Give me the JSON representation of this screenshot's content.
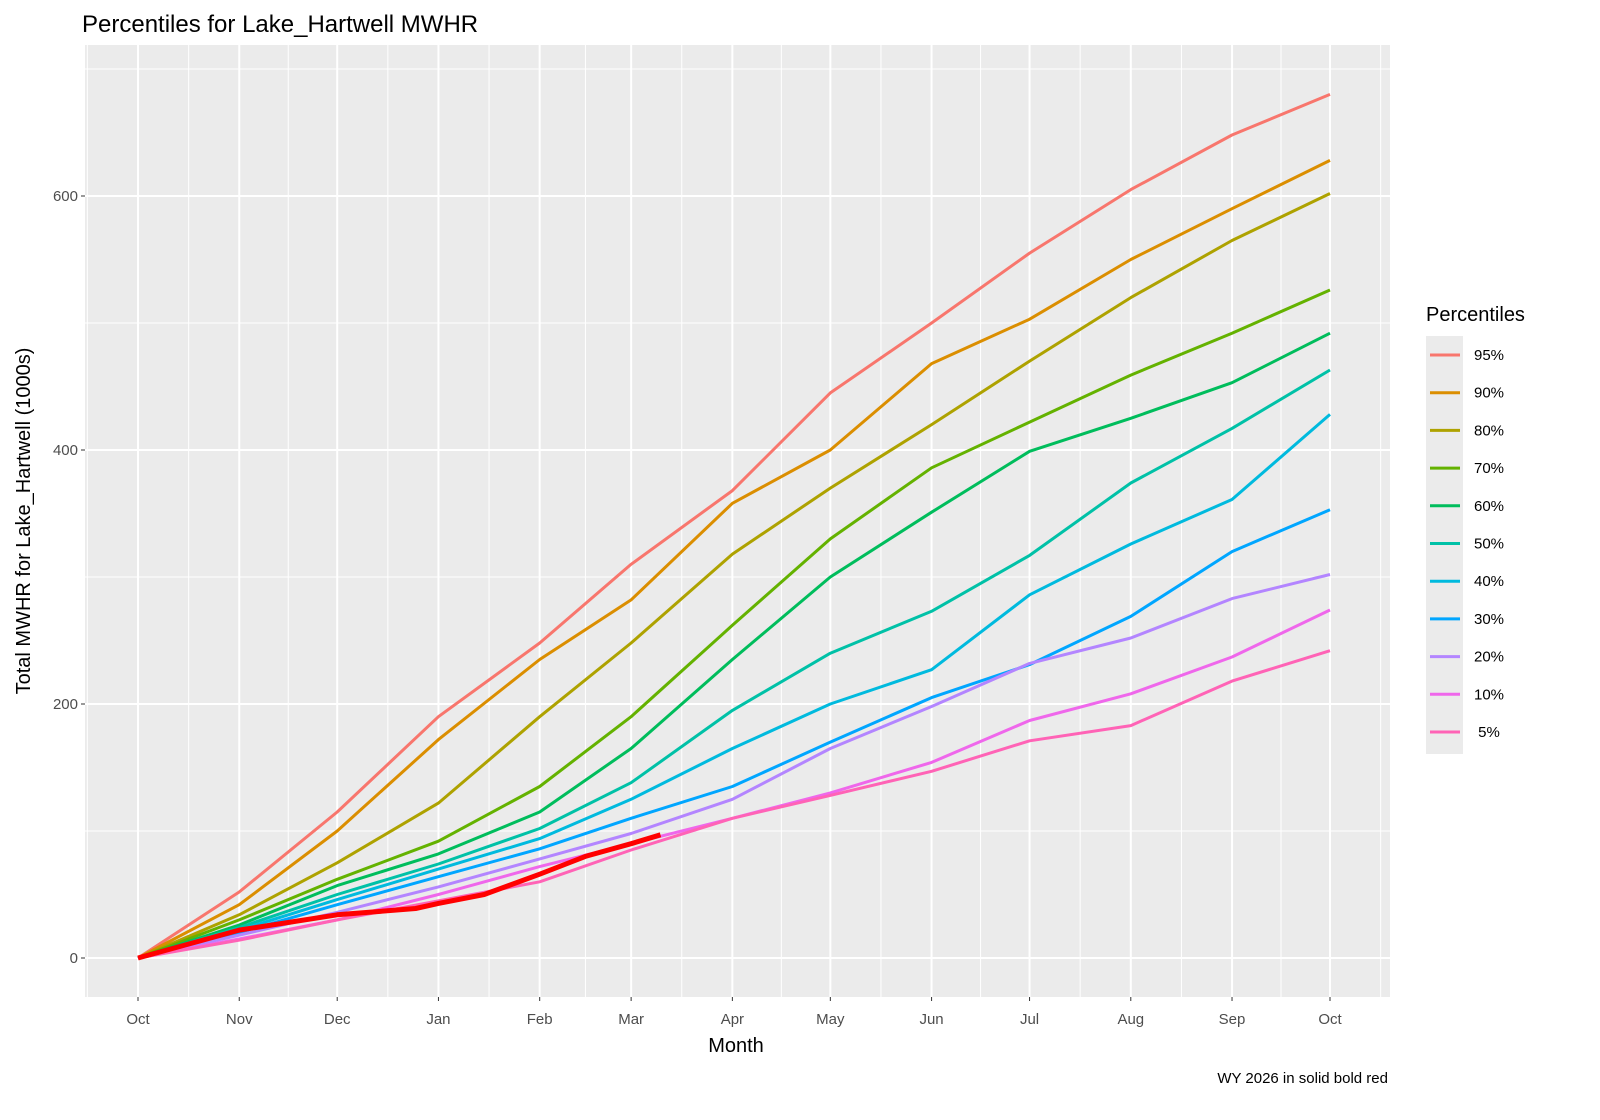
{
  "chart_data": {
    "type": "line",
    "title": "Percentiles for Lake_Hartwell MWHR",
    "xlabel": "Month",
    "ylabel": "Total MWHR for Lake_Hartwell  (1000s)",
    "caption": "WY 2026 in solid  bold red",
    "legend_title": "Percentiles",
    "legend_position": "right",
    "grid": true,
    "ylim": [
      -31,
      719
    ],
    "yticks": [
      0,
      200,
      400,
      600
    ],
    "xticks": [
      "Oct",
      "Nov",
      "Dec",
      "Jan",
      "Feb",
      "Mar",
      "Apr",
      "May",
      "Jun",
      "Jul",
      "Aug",
      "Sep",
      "Oct"
    ],
    "x": [
      "Oct 1",
      "Nov 1",
      "Dec 1",
      "Jan 1",
      "Feb 1",
      "Mar 1",
      "Apr 1",
      "May 1",
      "Jun 1",
      "Jul 1",
      "Aug 1",
      "Sep 1",
      "Oct 1"
    ],
    "series": [
      {
        "name": "95%",
        "color": "#F8766D",
        "values": [
          0,
          52,
          115,
          190,
          248,
          310,
          368,
          445,
          500,
          555,
          605,
          648,
          680
        ]
      },
      {
        "name": "90%",
        "color": "#DB8E00",
        "values": [
          0,
          42,
          100,
          172,
          235,
          282,
          358,
          400,
          468,
          503,
          550,
          590,
          628
        ]
      },
      {
        "name": "80%",
        "color": "#AEA200",
        "values": [
          0,
          34,
          75,
          122,
          190,
          248,
          318,
          370,
          420,
          470,
          520,
          565,
          602
        ]
      },
      {
        "name": "70%",
        "color": "#64B200",
        "values": [
          0,
          30,
          62,
          92,
          135,
          190,
          262,
          330,
          386,
          422,
          459,
          492,
          526
        ]
      },
      {
        "name": "60%",
        "color": "#00BD5C",
        "values": [
          0,
          26,
          57,
          82,
          115,
          165,
          235,
          300,
          351,
          399,
          425,
          453,
          492
        ]
      },
      {
        "name": "50%",
        "color": "#00C1A7",
        "values": [
          0,
          24,
          50,
          74,
          102,
          138,
          195,
          240,
          273,
          317,
          374,
          417,
          463
        ]
      },
      {
        "name": "40%",
        "color": "#00BADE",
        "values": [
          0,
          22,
          46,
          70,
          94,
          125,
          165,
          200,
          227,
          286,
          326,
          361,
          428
        ]
      },
      {
        "name": "30%",
        "color": "#00A6FF",
        "values": [
          0,
          20,
          42,
          64,
          86,
          110,
          135,
          170,
          205,
          231,
          269,
          320,
          353
        ]
      },
      {
        "name": "20%",
        "color": "#B385FF",
        "values": [
          0,
          18,
          36,
          56,
          78,
          98,
          125,
          165,
          198,
          232,
          252,
          283,
          302
        ]
      },
      {
        "name": "10%",
        "color": "#EF67EB",
        "values": [
          0,
          15,
          30,
          50,
          72,
          90,
          110,
          130,
          154,
          187,
          208,
          237,
          274
        ]
      },
      {
        "name": " 5%",
        "color": "#FF63B6",
        "values": [
          0,
          14,
          30,
          45,
          60,
          85,
          110,
          128,
          147,
          171,
          183,
          218,
          242
        ]
      }
    ],
    "current_year": {
      "name": "WY 2026",
      "color": "#FF0000",
      "x": [
        "Oct 1",
        "Nov 1",
        "Dec 1",
        "Dec 25",
        "Jan 1",
        "Jan 15",
        "Feb 1",
        "Feb 15",
        "Mar 1",
        "Mar 10"
      ],
      "values": [
        0,
        22,
        34,
        39,
        43,
        50,
        66,
        80,
        90,
        97
      ]
    }
  }
}
